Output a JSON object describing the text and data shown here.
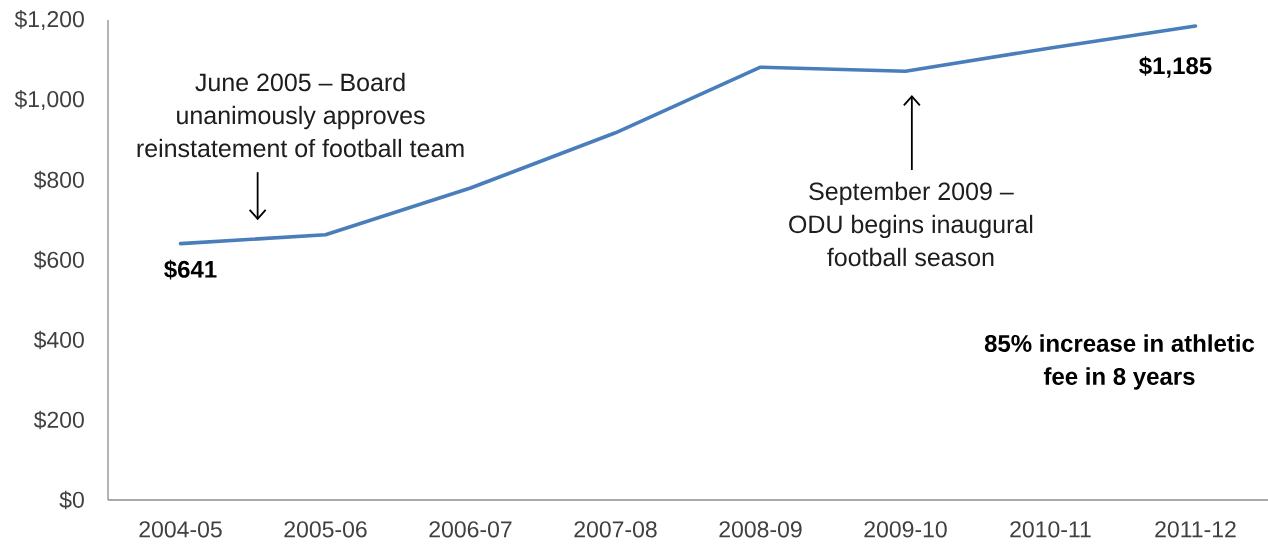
{
  "chart_data": {
    "type": "line",
    "categories": [
      "2004-05",
      "2005-06",
      "2006-07",
      "2007-08",
      "2008-09",
      "2009-10",
      "2010-11",
      "2011-12"
    ],
    "values": [
      641,
      663,
      780,
      918,
      1082,
      1072,
      1130,
      1185
    ],
    "color": "#4a7ebb",
    "marker": "none",
    "line_style": "solid",
    "ylim": [
      0,
      1200
    ],
    "yticks": [
      {
        "value": 0,
        "label": "$0"
      },
      {
        "value": 200,
        "label": "$200"
      },
      {
        "value": 400,
        "label": "$400"
      },
      {
        "value": 600,
        "label": "$600"
      },
      {
        "value": 800,
        "label": "$800"
      },
      {
        "value": 1000,
        "label": "$1,000"
      },
      {
        "value": 1200,
        "label": "$1,200"
      }
    ],
    "value_labels": [
      "$641",
      null,
      null,
      null,
      null,
      null,
      null,
      "$1,185"
    ],
    "annotations": [
      "June 2005 – Board unanimously approves reinstatement of football team",
      "September 2009 – ODU begins inaugural football season",
      "85% increase in athletic fee in 8 years"
    ]
  }
}
